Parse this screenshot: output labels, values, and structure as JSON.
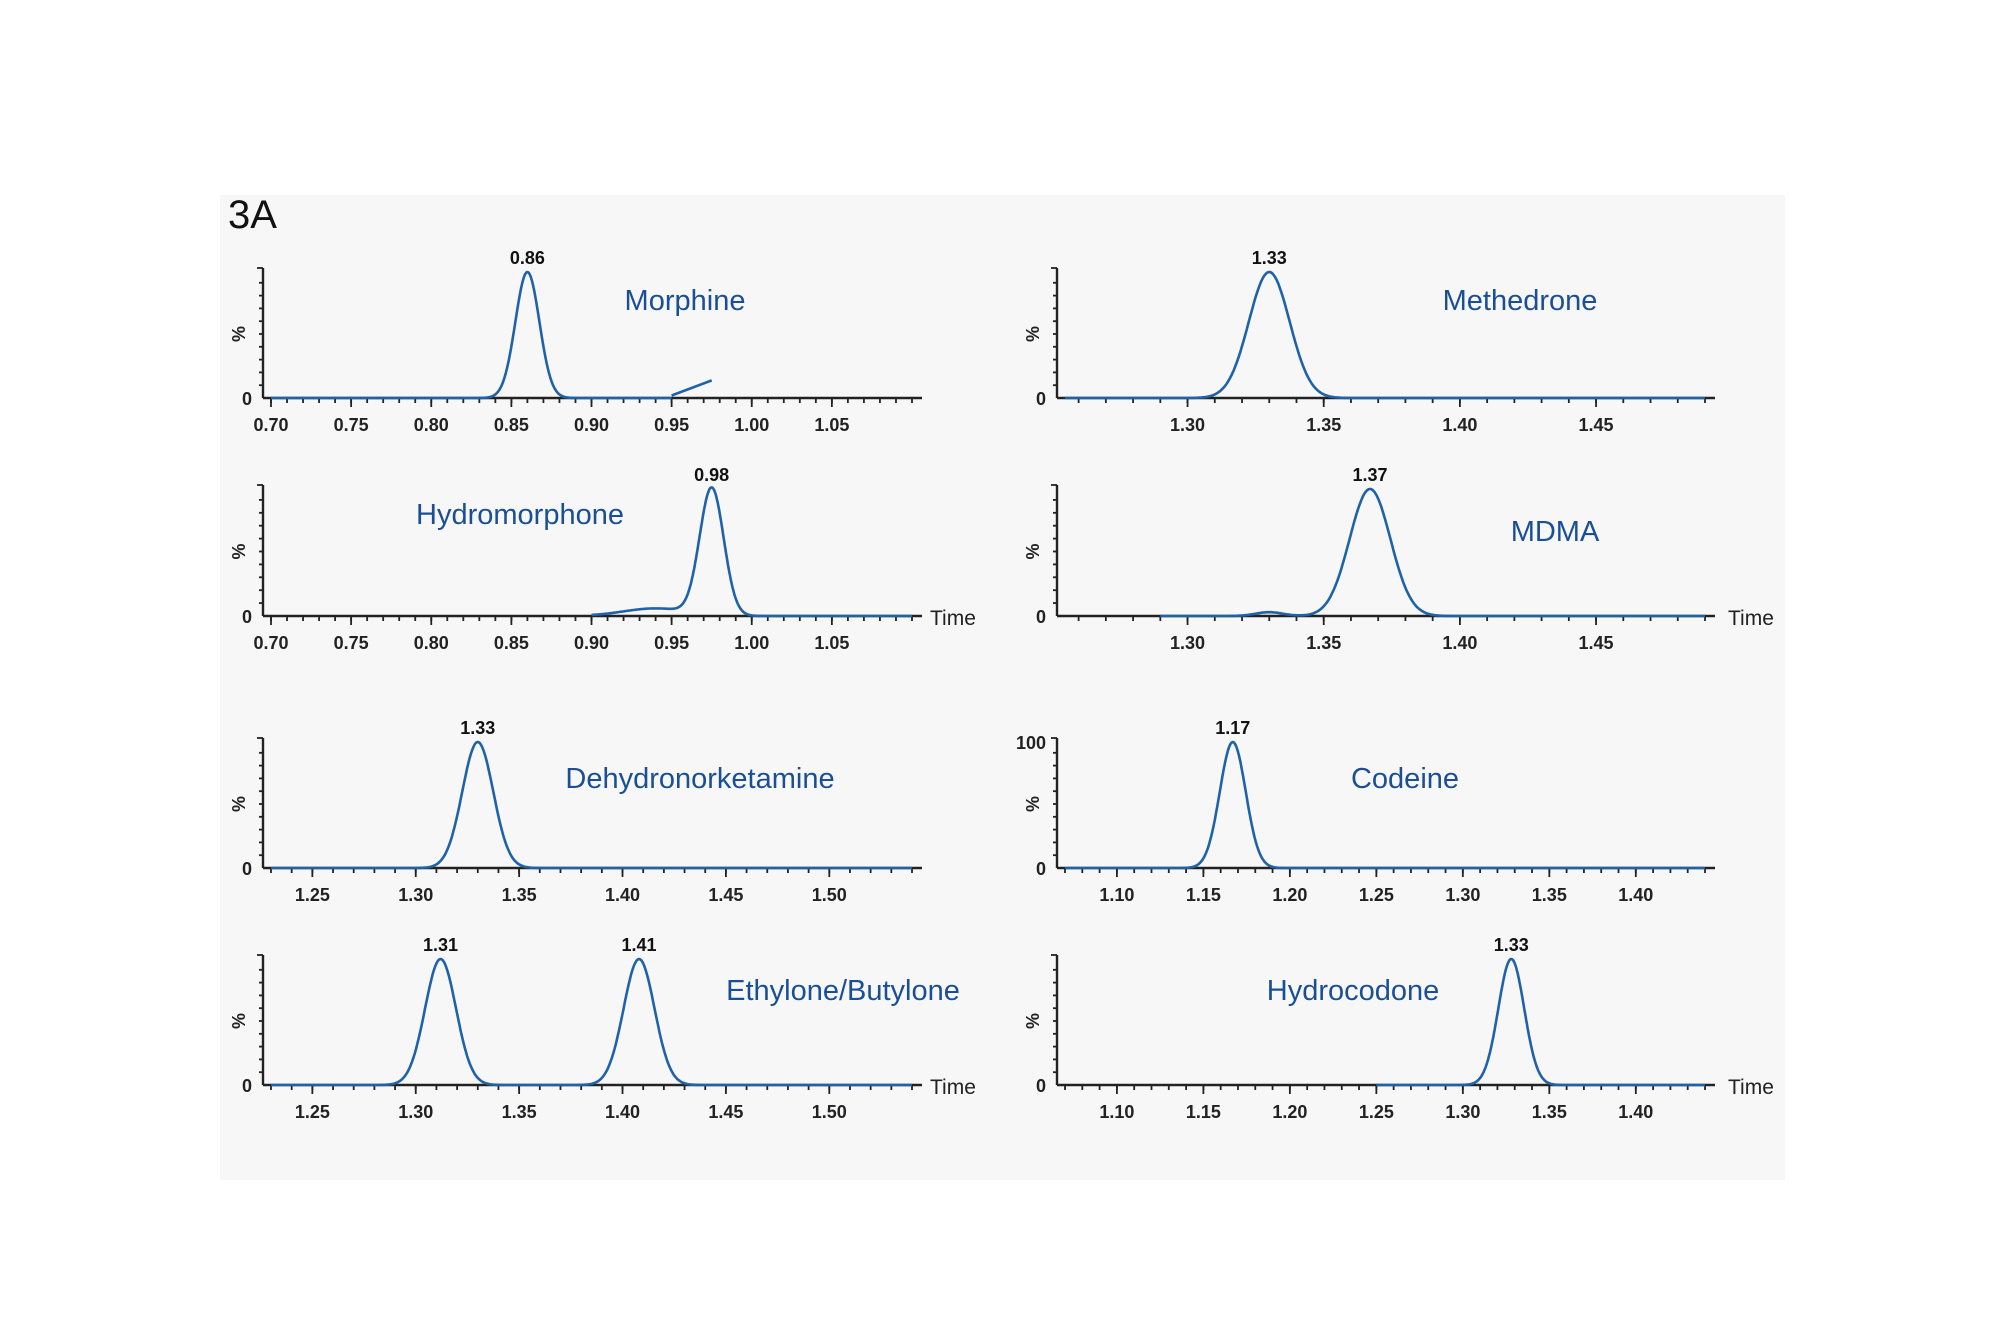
{
  "figure_label": "3A",
  "colors": {
    "trace": "#1f62a8",
    "compound_text": "#1a4f96",
    "axis": "#222222"
  },
  "chart_data": [
    {
      "type": "line",
      "compound": "Morphine",
      "ylabel": "%",
      "xlabel": "",
      "xlim": [
        0.7,
        1.1
      ],
      "ylim": [
        0,
        100
      ],
      "x_ticks": [
        "0.70",
        "0.75",
        "0.80",
        "0.85",
        "0.90",
        "0.95",
        "1.00",
        "1.05"
      ],
      "y_ticks": [
        "0"
      ],
      "peaks": [
        {
          "label": "0.86",
          "rt": 0.86,
          "height": 100,
          "width": 0.0075
        }
      ],
      "baseline_segments": [
        {
          "x_start": 0.7,
          "x_end": 0.95,
          "y": 0
        }
      ],
      "extra_segments": [
        {
          "points": [
            [
              0.95,
              2
            ],
            [
              0.975,
              14
            ]
          ]
        }
      ]
    },
    {
      "type": "line",
      "compound": "Methedrone",
      "ylabel": "%",
      "xlabel": "",
      "xlim": [
        1.255,
        1.49
      ],
      "ylim": [
        0,
        100
      ],
      "x_ticks": [
        "1.30",
        "1.35",
        "1.40",
        "1.45"
      ],
      "y_ticks": [
        "0"
      ],
      "peaks": [
        {
          "label": "1.33",
          "rt": 1.33,
          "height": 100,
          "width": 0.0075
        }
      ],
      "baseline_segments": [
        {
          "x_start": 1.255,
          "x_end": 1.49,
          "y": 0
        }
      ]
    },
    {
      "type": "line",
      "compound": "Hydromorphone",
      "ylabel": "%",
      "xlabel": "Time",
      "xlim": [
        0.7,
        1.1
      ],
      "ylim": [
        0,
        100
      ],
      "x_ticks": [
        "0.70",
        "0.75",
        "0.80",
        "0.85",
        "0.90",
        "0.95",
        "1.00",
        "1.05"
      ],
      "y_ticks": [
        "0"
      ],
      "peaks": [
        {
          "label": "0.98",
          "rt": 0.975,
          "height": 100,
          "width": 0.0075
        },
        {
          "label": "",
          "rt": 0.94,
          "height": 6,
          "width": 0.02
        }
      ],
      "baseline_segments": [
        {
          "x_start": 0.9,
          "x_end": 1.1,
          "y": 0
        }
      ]
    },
    {
      "type": "line",
      "compound": "MDMA",
      "ylabel": "%",
      "xlabel": "Time",
      "xlim": [
        1.255,
        1.49
      ],
      "ylim": [
        0,
        100
      ],
      "x_ticks": [
        "1.30",
        "1.35",
        "1.40",
        "1.45"
      ],
      "y_ticks": [
        "0"
      ],
      "peaks": [
        {
          "label": "1.37",
          "rt": 1.367,
          "height": 100,
          "width": 0.0075
        },
        {
          "label": "",
          "rt": 1.33,
          "height": 3,
          "width": 0.005
        }
      ],
      "baseline_segments": [
        {
          "x_start": 1.29,
          "x_end": 1.49,
          "y": 0
        }
      ]
    },
    {
      "type": "line",
      "compound": "Dehydronorketamine",
      "ylabel": "%",
      "xlabel": "",
      "xlim": [
        1.23,
        1.54
      ],
      "ylim": [
        0,
        100
      ],
      "x_ticks": [
        "1.25",
        "1.30",
        "1.35",
        "1.40",
        "1.45",
        "1.50"
      ],
      "y_ticks": [
        "0"
      ],
      "peaks": [
        {
          "label": "1.33",
          "rt": 1.33,
          "height": 100,
          "width": 0.0075
        }
      ],
      "baseline_segments": [
        {
          "x_start": 1.23,
          "x_end": 1.54,
          "y": 0
        }
      ]
    },
    {
      "type": "line",
      "compound": "Codeine",
      "ylabel": "%",
      "xlabel": "",
      "xlim": [
        1.07,
        1.44
      ],
      "ylim": [
        0,
        100
      ],
      "x_ticks": [
        "1.10",
        "1.15",
        "1.20",
        "1.25",
        "1.30",
        "1.35",
        "1.40"
      ],
      "y_ticks": [
        "0",
        "100"
      ],
      "peaks": [
        {
          "label": "1.17",
          "rt": 1.167,
          "height": 100,
          "width": 0.0075
        }
      ],
      "baseline_segments": [
        {
          "x_start": 1.07,
          "x_end": 1.44,
          "y": 0
        }
      ]
    },
    {
      "type": "line",
      "compound": "Ethylone/Butylone",
      "ylabel": "%",
      "xlabel": "Time",
      "xlim": [
        1.23,
        1.54
      ],
      "ylim": [
        0,
        100
      ],
      "x_ticks": [
        "1.25",
        "1.30",
        "1.35",
        "1.40",
        "1.45",
        "1.50"
      ],
      "y_ticks": [
        "0"
      ],
      "peaks": [
        {
          "label": "1.31",
          "rt": 1.312,
          "height": 100,
          "width": 0.0075
        },
        {
          "label": "1.41",
          "rt": 1.408,
          "height": 100,
          "width": 0.0075
        }
      ],
      "baseline_segments": [
        {
          "x_start": 1.23,
          "x_end": 1.54,
          "y": 0
        }
      ]
    },
    {
      "type": "line",
      "compound": "Hydrocodone",
      "ylabel": "%",
      "xlabel": "Time",
      "xlim": [
        1.07,
        1.44
      ],
      "ylim": [
        0,
        100
      ],
      "x_ticks": [
        "1.10",
        "1.15",
        "1.20",
        "1.25",
        "1.30",
        "1.35",
        "1.40"
      ],
      "y_ticks": [
        "0"
      ],
      "peaks": [
        {
          "label": "1.33",
          "rt": 1.328,
          "height": 100,
          "width": 0.0075
        }
      ],
      "baseline_segments": [
        {
          "x_start": 1.25,
          "x_end": 1.44,
          "y": 0
        }
      ]
    }
  ]
}
